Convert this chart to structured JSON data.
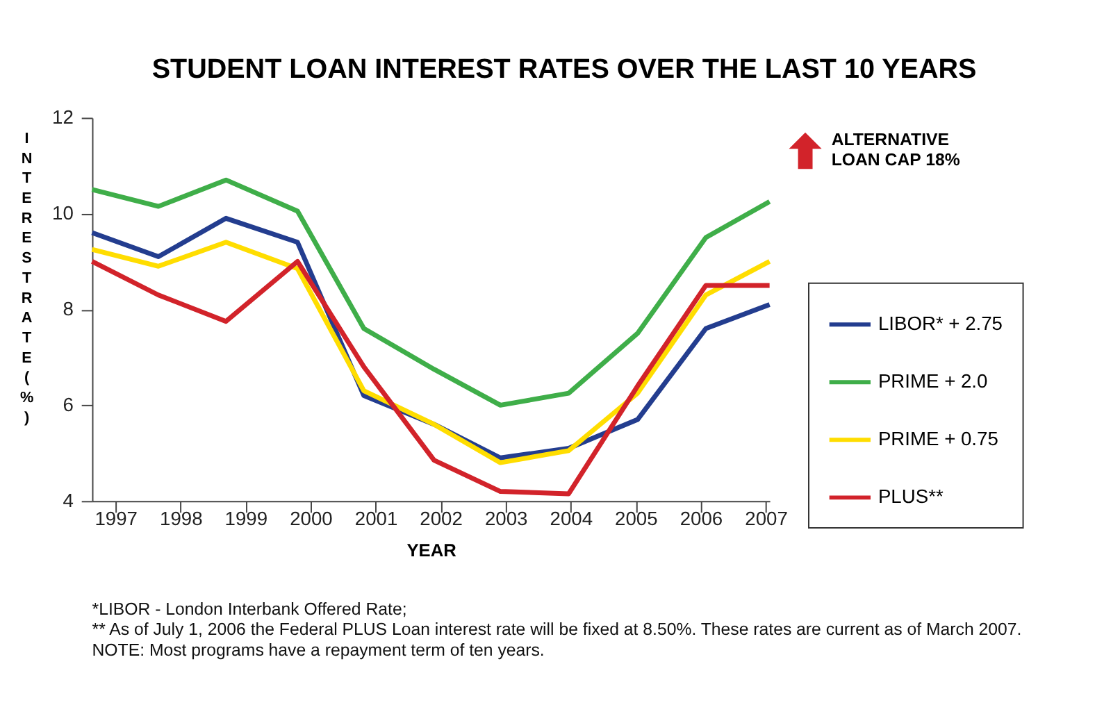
{
  "chart_data": {
    "type": "line",
    "title": "STUDENT LOAN INTEREST RATES OVER THE LAST 10 YEARS",
    "xlabel": "YEAR",
    "ylabel": "INTEREST RATE (%)",
    "x": [
      1996.64,
      1997.66,
      1998.7,
      1999.8,
      2000.82,
      2001.9,
      2002.92,
      2003.97,
      2005.03,
      2006.08,
      2007.06
    ],
    "series": [
      {
        "name": "LIBOR* + 2.75",
        "color": "#233d8f",
        "values": [
          9.6,
          9.1,
          9.9,
          9.4,
          6.2,
          5.6,
          4.9,
          5.1,
          5.7,
          7.6,
          8.1
        ]
      },
      {
        "name": "PRIME + 2.0",
        "color": "#3fae49",
        "values": [
          10.5,
          10.15,
          10.7,
          10.05,
          7.6,
          6.75,
          6.0,
          6.25,
          7.5,
          9.5,
          10.25
        ]
      },
      {
        "name": "PRIME + 0.75",
        "color": "#ffdd00",
        "values": [
          9.25,
          8.9,
          9.4,
          8.85,
          6.3,
          5.6,
          4.8,
          5.05,
          6.25,
          8.3,
          9.0
        ]
      },
      {
        "name": "PLUS**",
        "color": "#d2232a",
        "values": [
          9.0,
          8.3,
          7.75,
          9.0,
          6.8,
          4.85,
          4.2,
          4.15,
          6.4,
          8.5,
          8.5
        ]
      }
    ],
    "xlim": [
      1996.64,
      2007.06
    ],
    "xticks": [
      1997,
      1998,
      1999,
      2000,
      2001,
      2002,
      2003,
      2004,
      2005,
      2006,
      2007
    ],
    "ylim": [
      4,
      12
    ],
    "yticks": [
      4,
      6,
      8,
      10,
      12
    ],
    "grid": false,
    "legend": "right",
    "marker": "none",
    "line_style": "solid",
    "annotations": [
      "ALTERNATIVE LOAN CAP 18%",
      "*LIBOR - London Interbank Offered Rate;",
      "** As of July 1, 2006 the Federal PLUS Loan interest rate will be fixed at 8.50%. These rates are current as of March 2007.",
      "NOTE: Most programs have a repayment term of ten years."
    ]
  }
}
